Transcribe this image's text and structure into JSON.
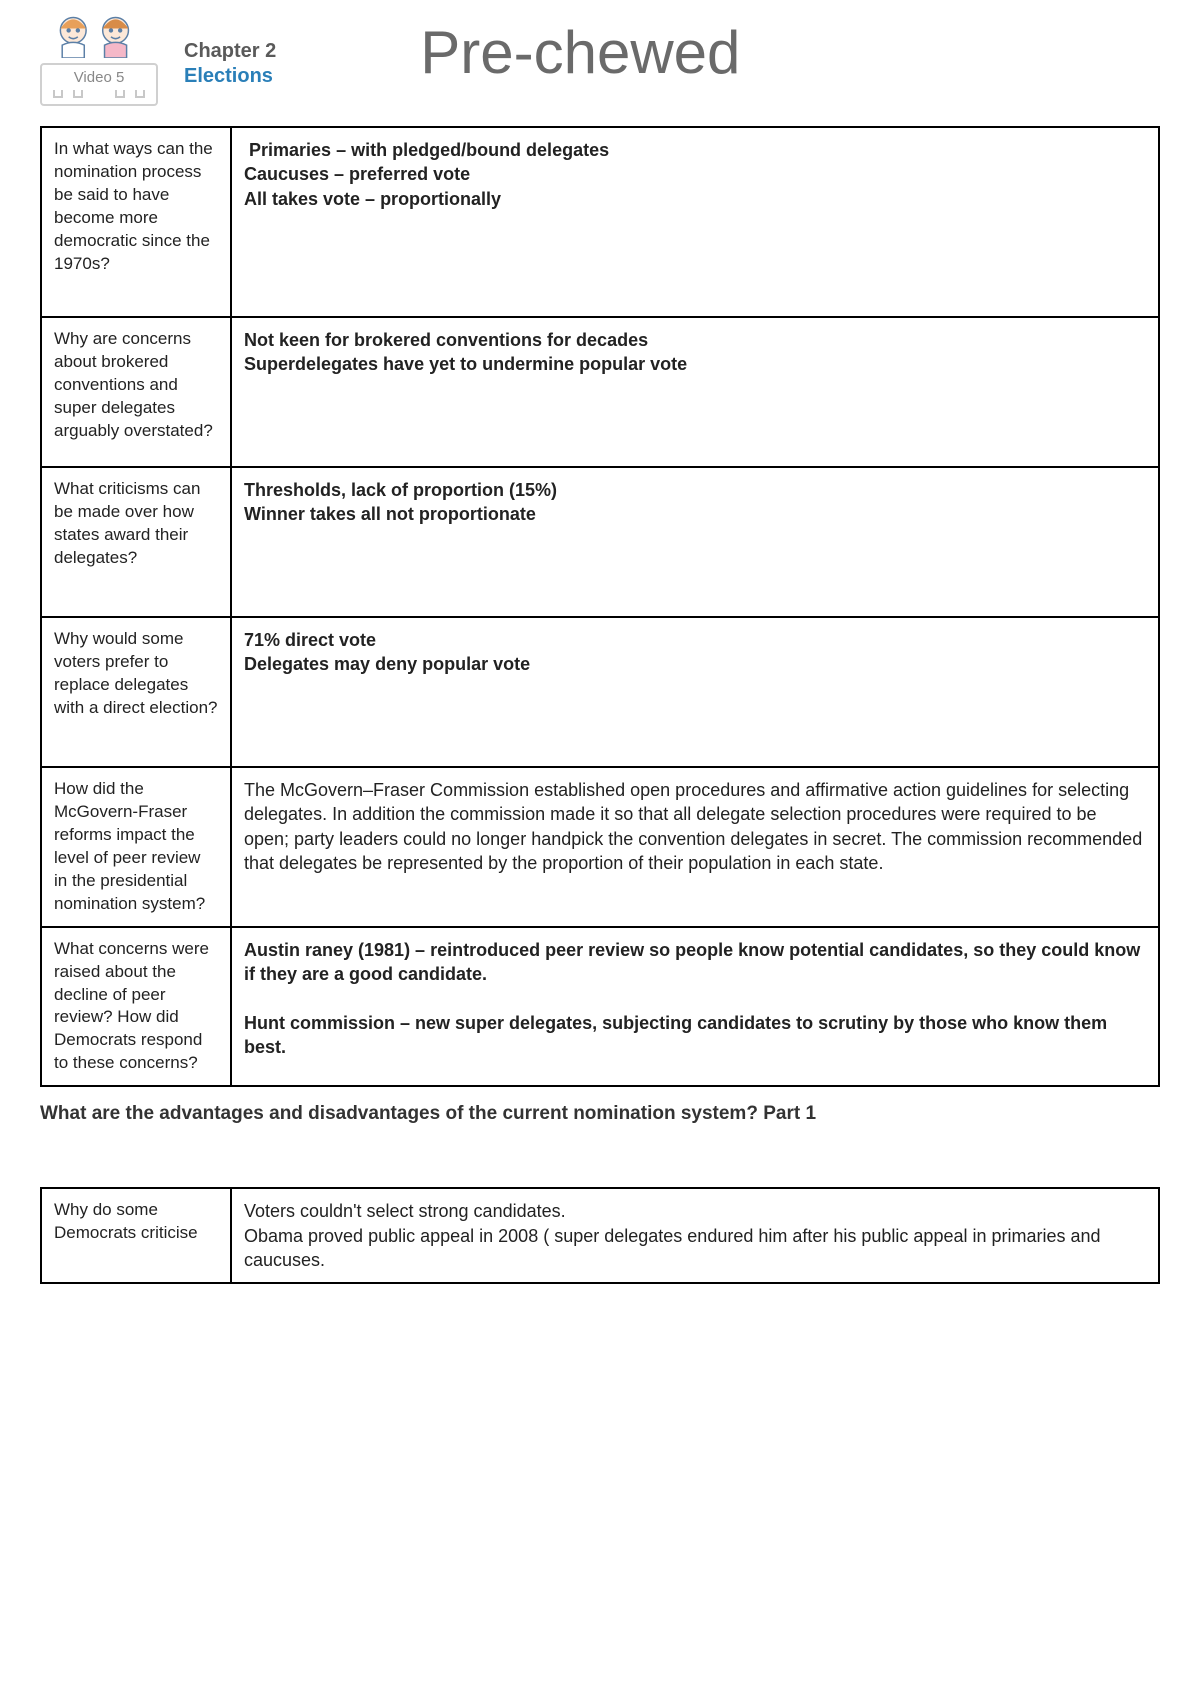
{
  "header": {
    "chapter_label": "Chapter 2",
    "chapter_topic": "Elections",
    "brand": "Pre-chewed",
    "video_label": "Video 5"
  },
  "rows": [
    {
      "q": "In what ways can the nomination process be said to have become more democratic since the 1970s?",
      "a": " Primaries – with pledged/bound delegates\nCaucuses – preferred vote\nAll takes vote – proportionally",
      "a_bold": true,
      "min_h": 190
    },
    {
      "q": "Why are concerns about brokered conventions and super delegates arguably overstated?",
      "a": "Not keen for brokered conventions for decades\nSuperdelegates have yet to undermine popular vote",
      "a_bold": true,
      "min_h": 150
    },
    {
      "q": "What criticisms can be made over how states award their delegates?",
      "a": "Thresholds, lack of proportion (15%)\nWinner takes all not proportionate",
      "a_bold": true,
      "min_h": 150
    },
    {
      "q": "Why would some voters prefer to replace delegates with a direct election?",
      "a": "71% direct vote\nDelegates may deny popular vote",
      "a_bold": true,
      "min_h": 150
    },
    {
      "q": "How did the McGovern-Fraser reforms impact the level of peer review in the presidential nomination system?",
      "a": "The McGovern–Fraser Commission established open procedures and affirmative action guidelines for selecting delegates. In addition the commission made it so that all delegate selection procedures were required to be open; party leaders could no longer handpick the convention delegates in secret. The commission recommended that delegates be represented by the proportion of their population in each state.",
      "a_bold": false,
      "min_h": 0
    },
    {
      "q": "What concerns were raised about the decline of peer review? How did Democrats respond to these concerns?",
      "a": "Austin raney (1981) – reintroduced peer review so people know potential candidates, so they could know if they are a good candidate.\n\nHunt commission – new super delegates, subjecting candidates to scrutiny by those who know them best.",
      "a_bold": true,
      "min_h": 0
    }
  ],
  "section_heading": "What are the advantages and disadvantages of the current nomination system? Part 1",
  "rows2": [
    {
      "q": "Why do some Democrats criticise",
      "a": "Voters couldn't select strong candidates.\nObama proved public appeal in 2008 ( super delegates endured him after his public appeal in primaries and caucuses.",
      "a_bold": false,
      "min_h": 0
    }
  ],
  "logo_colors": {
    "hair1": "#e8a05a",
    "hair2": "#d88c48",
    "skin": "#fce8d8",
    "line": "#5b7fa6",
    "shirt": "#f5b8c8"
  }
}
